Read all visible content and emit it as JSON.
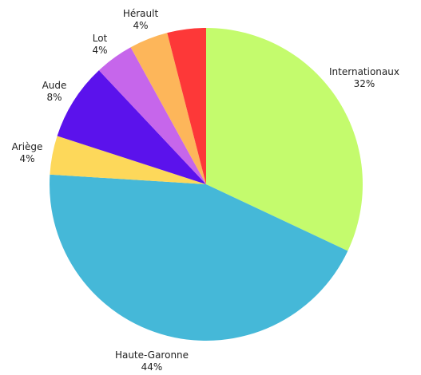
{
  "chart_data": {
    "type": "pie",
    "title": "",
    "slices": [
      {
        "label": "Internationaux",
        "value": 32,
        "pct_label": "32%",
        "color": "#c4fb6d"
      },
      {
        "label": "Haute-Garonne",
        "value": 44,
        "pct_label": "44%",
        "color": "#45b8d8"
      },
      {
        "label": "Ariège",
        "value": 4,
        "pct_label": "4%",
        "color": "#fdd85a"
      },
      {
        "label": "Aude",
        "value": 8,
        "pct_label": "8%",
        "color": "#5b12ec"
      },
      {
        "label": "Lot",
        "value": 4,
        "pct_label": "4%",
        "color": "#c666eb"
      },
      {
        "label": "Hérault",
        "value": 4,
        "pct_label": "4%",
        "color": "#fdb65a"
      },
      {
        "label": "",
        "value": 4,
        "pct_label": "",
        "color": "#fd3838"
      }
    ],
    "start_angle_deg": 0,
    "direction": "clockwise",
    "legend": "none",
    "labels": "outside"
  }
}
